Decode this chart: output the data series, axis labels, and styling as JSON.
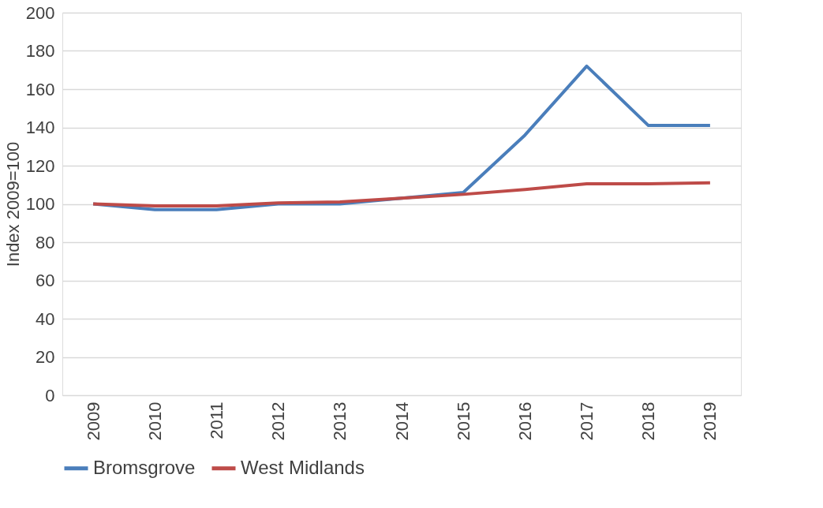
{
  "chart_data": {
    "type": "line",
    "ylabel": "Index 2009=100",
    "categories": [
      "2009",
      "2010",
      "2011",
      "2012",
      "2013",
      "2014",
      "2015",
      "2016",
      "2017",
      "2018",
      "2019"
    ],
    "series": [
      {
        "name": "Bromsgrove",
        "color": "#4a7ebb",
        "values": [
          100,
          97,
          97,
          100,
          100,
          103,
          106,
          136,
          172,
          141,
          141
        ]
      },
      {
        "name": "West Midlands",
        "color": "#be4b48",
        "values": [
          100,
          99,
          99,
          100.5,
          101,
          103,
          105,
          107.5,
          110.5,
          110.5,
          111
        ]
      }
    ],
    "ylim": [
      0,
      200
    ],
    "yticks": [
      0,
      20,
      40,
      60,
      80,
      100,
      120,
      140,
      160,
      180,
      200
    ],
    "grid": "y",
    "legend": "bottom",
    "marker": "none",
    "line_style": "solid"
  }
}
